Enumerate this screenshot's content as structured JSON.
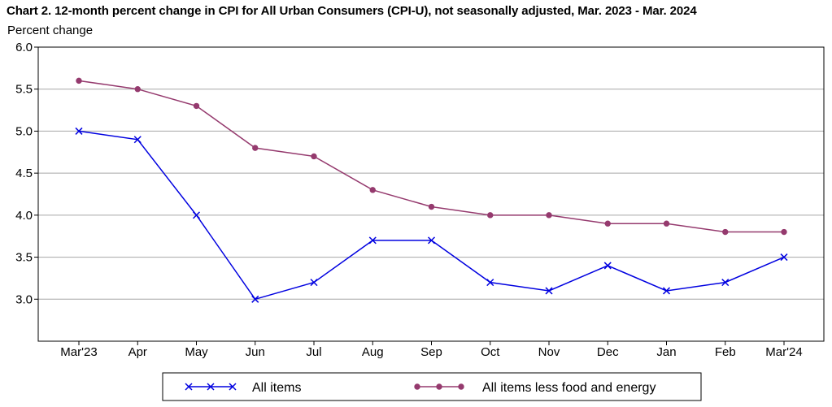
{
  "chart_data": {
    "type": "line",
    "title": "Chart 2. 12-month percent change in CPI for All Urban Consumers (CPI-U), not seasonally adjusted, Mar. 2023 - Mar. 2024",
    "ylabel": "Percent change",
    "xlabel": "",
    "categories": [
      "Mar'23",
      "Apr",
      "May",
      "Jun",
      "Jul",
      "Aug",
      "Sep",
      "Oct",
      "Nov",
      "Dec",
      "Jan",
      "Feb",
      "Mar'24"
    ],
    "ylim": [
      2.5,
      6.0
    ],
    "yticks": [
      3.0,
      3.5,
      4.0,
      4.5,
      5.0,
      5.5,
      6.0
    ],
    "ytick_labels": [
      "3.0",
      "3.5",
      "4.0",
      "4.5",
      "5.0",
      "5.5",
      "6.0"
    ],
    "grid": true,
    "legend_position": "bottom",
    "series": [
      {
        "name": "All items",
        "color": "#0000e0",
        "marker": "x-mark",
        "values": [
          5.0,
          4.9,
          4.0,
          3.0,
          3.2,
          3.7,
          3.7,
          3.2,
          3.1,
          3.4,
          3.1,
          3.2,
          3.5
        ]
      },
      {
        "name": "All items less food and energy",
        "color": "#953a6e",
        "marker": "circle",
        "values": [
          5.6,
          5.5,
          5.3,
          4.8,
          4.7,
          4.3,
          4.1,
          4.0,
          4.0,
          3.9,
          3.9,
          3.8,
          3.8
        ]
      }
    ]
  }
}
